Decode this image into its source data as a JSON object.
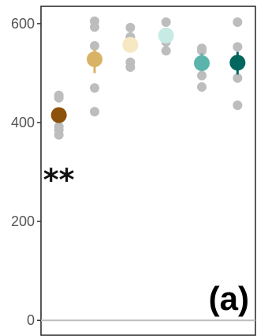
{
  "chart_data": {
    "type": "scatter",
    "title": "",
    "xlabel": "",
    "ylabel": "",
    "ylim": [
      -30,
      635
    ],
    "yticks": [
      0,
      200,
      400,
      600
    ],
    "grid": false,
    "reference_line_y": 0,
    "reference_line_color": "#bdbdbd",
    "raw_point_color": "#bdbdbd",
    "panel_label": "(a)",
    "annotations": [
      {
        "text": "**",
        "group_index": 0,
        "y": 295
      }
    ],
    "groups": [
      {
        "color": "#8c510a",
        "mean": 415,
        "err": [
          405,
          425
        ],
        "raw": [
          455,
          450,
          392,
          385,
          375
        ]
      },
      {
        "color": "#d8b365",
        "mean": 528,
        "err": [
          500,
          548
        ],
        "raw": [
          605,
          593,
          555,
          470,
          422
        ]
      },
      {
        "color": "#f6e8c3",
        "mean": 557,
        "err": [
          548,
          566
        ],
        "raw": [
          592,
          573,
          570,
          560,
          522,
          512
        ]
      },
      {
        "color": "#c7eae5",
        "mean": 576,
        "err": [
          566,
          586
        ],
        "raw": [
          603,
          580,
          570,
          563,
          545
        ]
      },
      {
        "color": "#5ab4ac",
        "mean": 520,
        "err": [
          508,
          540
        ],
        "raw": [
          550,
          545,
          520,
          495,
          472
        ]
      },
      {
        "color": "#01665e",
        "mean": 521,
        "err": [
          497,
          543
        ],
        "raw": [
          603,
          553,
          528,
          490,
          435
        ]
      }
    ]
  }
}
